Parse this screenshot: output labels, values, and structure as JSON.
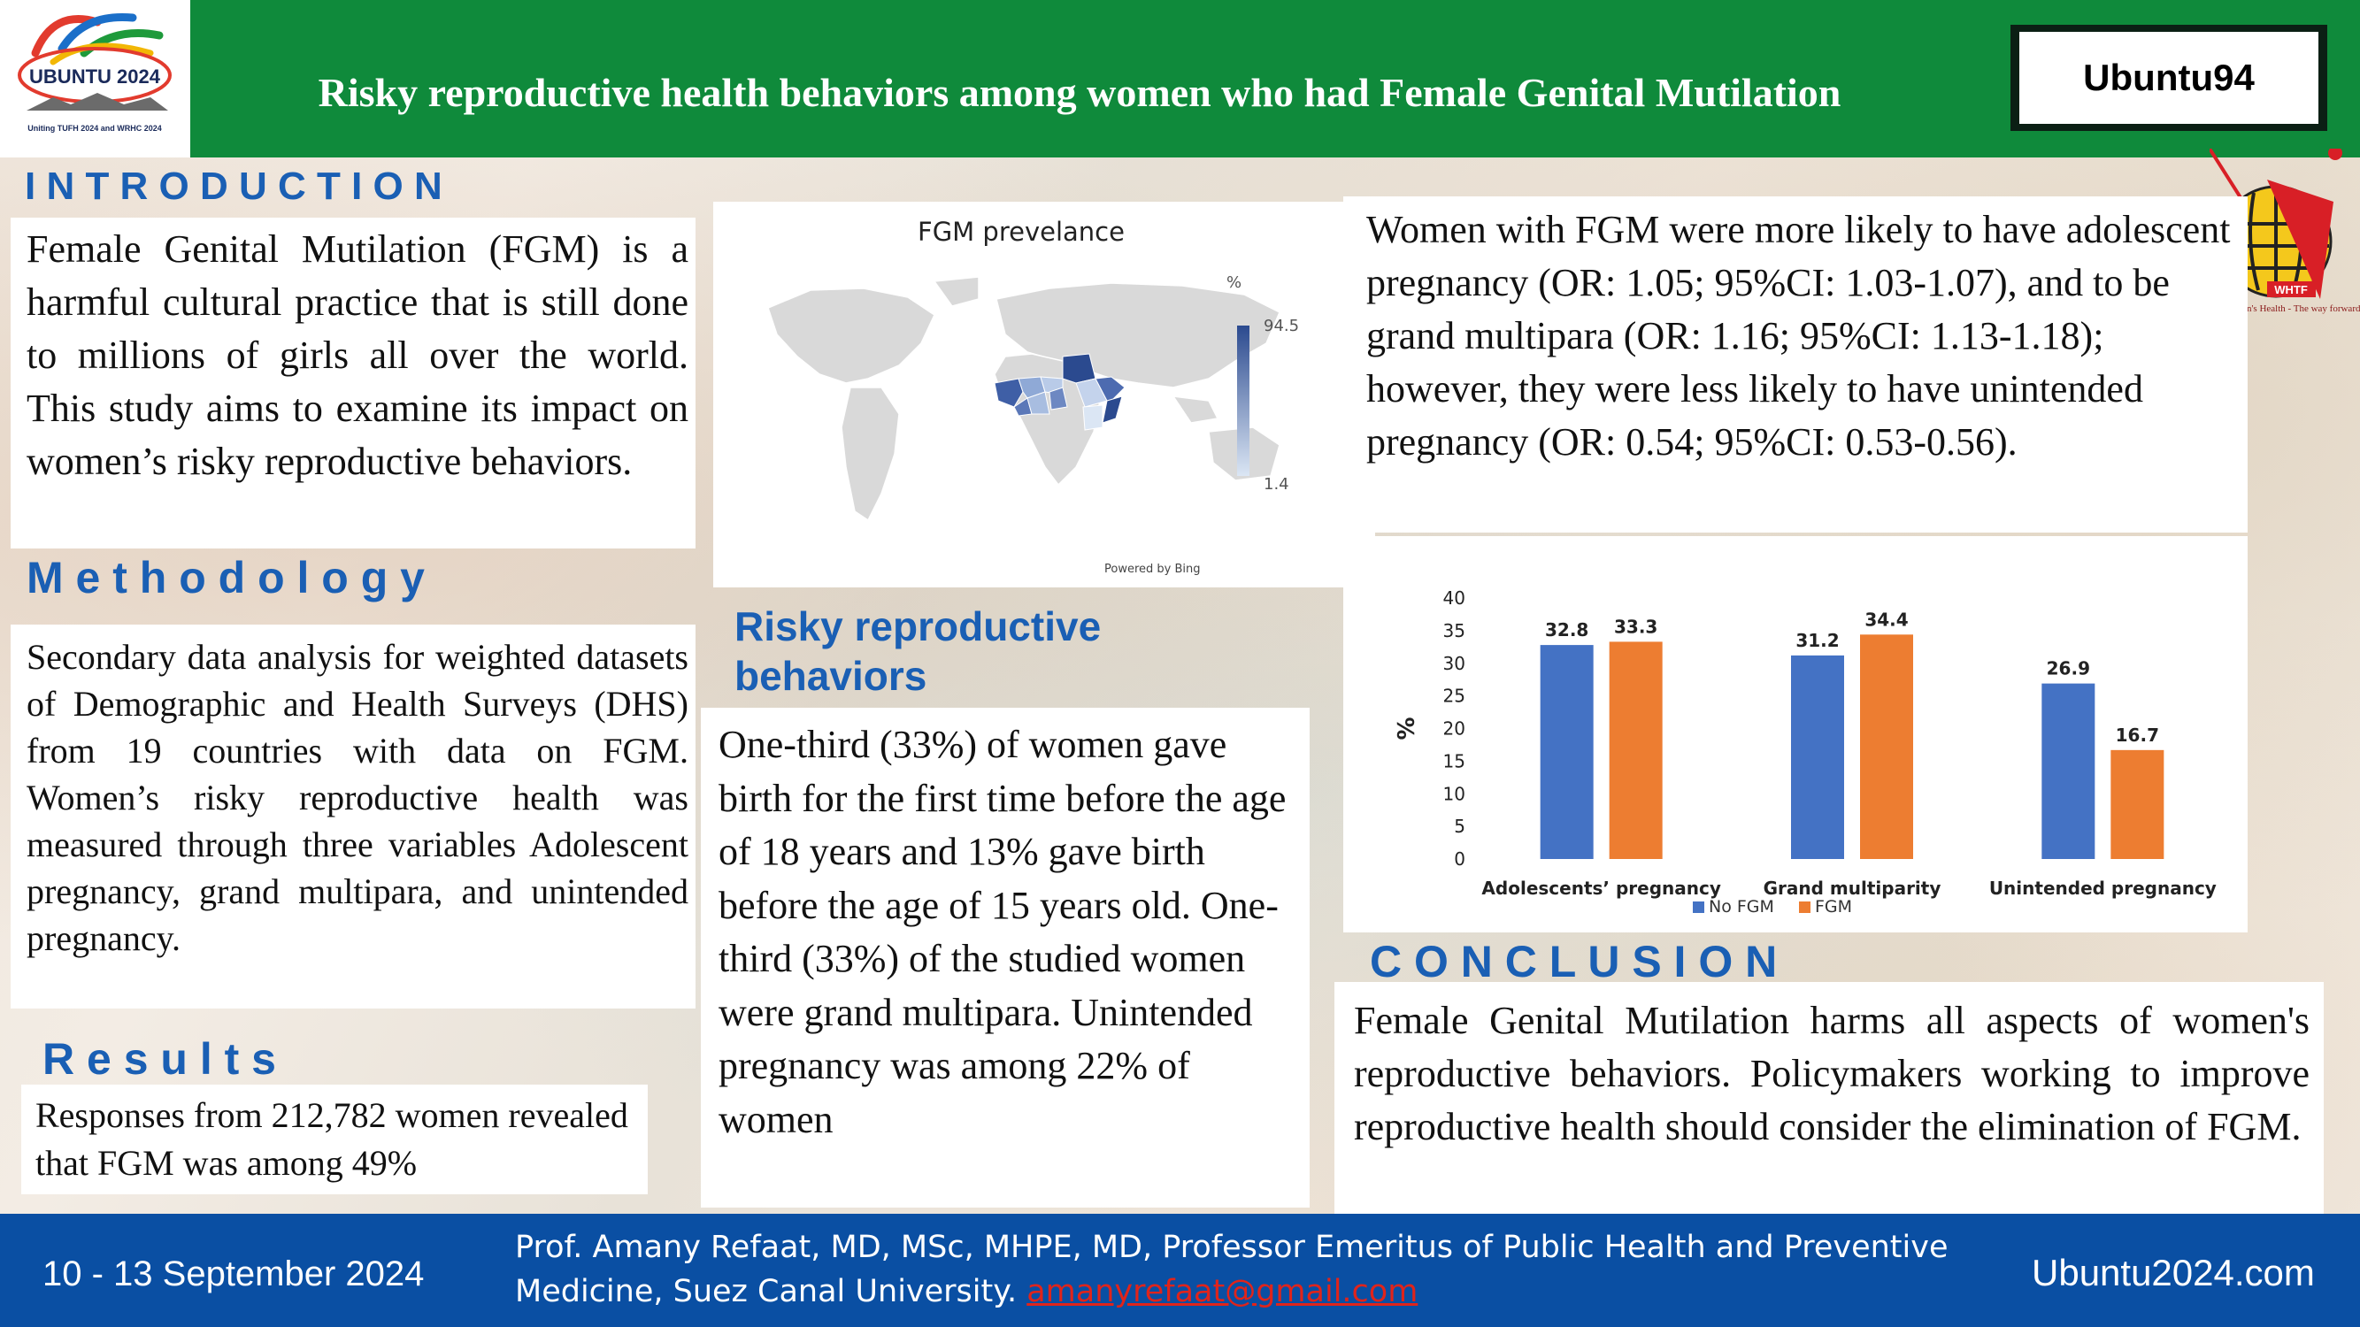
{
  "header": {
    "logo_text": "UBUNTU 2024",
    "logo_subtext": "Uniting TUFH 2024 and WRHC 2024",
    "title": "Risky reproductive health behaviors among women who had Female Genital Mutilation",
    "code": "Ubuntu94",
    "right_logo_text": "WHTF",
    "right_logo_tagline": "Women's Health - The way forward"
  },
  "introduction": {
    "heading": "I N T R O D U C T I O N",
    "body": "Female Genital Mutilation (FGM) is a harmful cultural practice that is still done to millions of girls all over the world. This study aims to examine its impact on women’s risky reproductive behaviors."
  },
  "methodology": {
    "heading": "M e t h o d o l o g y",
    "body": "Secondary data analysis for weighted datasets of Demographic and Health Surveys (DHS) from 19 countries with data on FGM. Women’s risky reproductive health was measured through three variables Adolescent pregnancy, grand multipara, and unintended pregnancy."
  },
  "results": {
    "heading": "R e s u l t s",
    "body": "Responses from 212,782 women revealed that FGM was among 49%"
  },
  "map": {
    "title": "FGM prevelance",
    "unit": "%",
    "max_label": "94.5",
    "min_label": "1.4",
    "credit": "Powered by Bing",
    "color_high": "#2b4a8f",
    "color_low": "#dbe6f4"
  },
  "risky": {
    "heading_line1": "Risky reproductive",
    "heading_line2": "behaviors",
    "body": "One-third (33%) of women gave birth for the first time before the age of 18 years and 13% gave birth before the age of 15 years old. One-third (33%) of the studied women were grand multipara. Unintended pregnancy was among 22% of women"
  },
  "or_findings": {
    "body": "Women with FGM were more likely to have adolescent pregnancy (OR: 1.05; 95%CI: 1.03-1.07), and to be grand multipara (OR: 1.16; 95%CI: 1.13-1.18); however, they were less likely to have unintended pregnancy (OR: 0.54; 95%CI: 0.53-0.56)."
  },
  "chart_data": {
    "type": "bar",
    "categories": [
      "Adolescents’ pregnancy",
      "Grand multiparity",
      "Unintended pregnancy"
    ],
    "series": [
      {
        "name": "No FGM",
        "values": [
          32.8,
          31.2,
          26.9
        ],
        "color": "#4472c4"
      },
      {
        "name": "FGM",
        "values": [
          33.3,
          34.4,
          16.7
        ],
        "color": "#ed7d31"
      }
    ],
    "ylabel": "%",
    "ylim": [
      0,
      40
    ],
    "yticks": [
      0,
      5,
      10,
      15,
      20,
      25,
      30,
      35,
      40
    ],
    "grid": false,
    "legend": "bottom"
  },
  "conclusion": {
    "heading": "C O N C L U S I O N",
    "body": "Female Genital Mutilation harms all aspects of women's reproductive behaviors. Policymakers working to improve reproductive health should consider the elimination of FGM."
  },
  "footer": {
    "date": "10 - 13 September 2024",
    "author": "Prof. Amany Refaat, MD, MSc, MHPE, MD, Professor Emeritus of Public Health and Preventive Medicine, Suez Canal University.",
    "email": "amanyrefaat@gmail.com",
    "website": "Ubuntu2024.com"
  }
}
